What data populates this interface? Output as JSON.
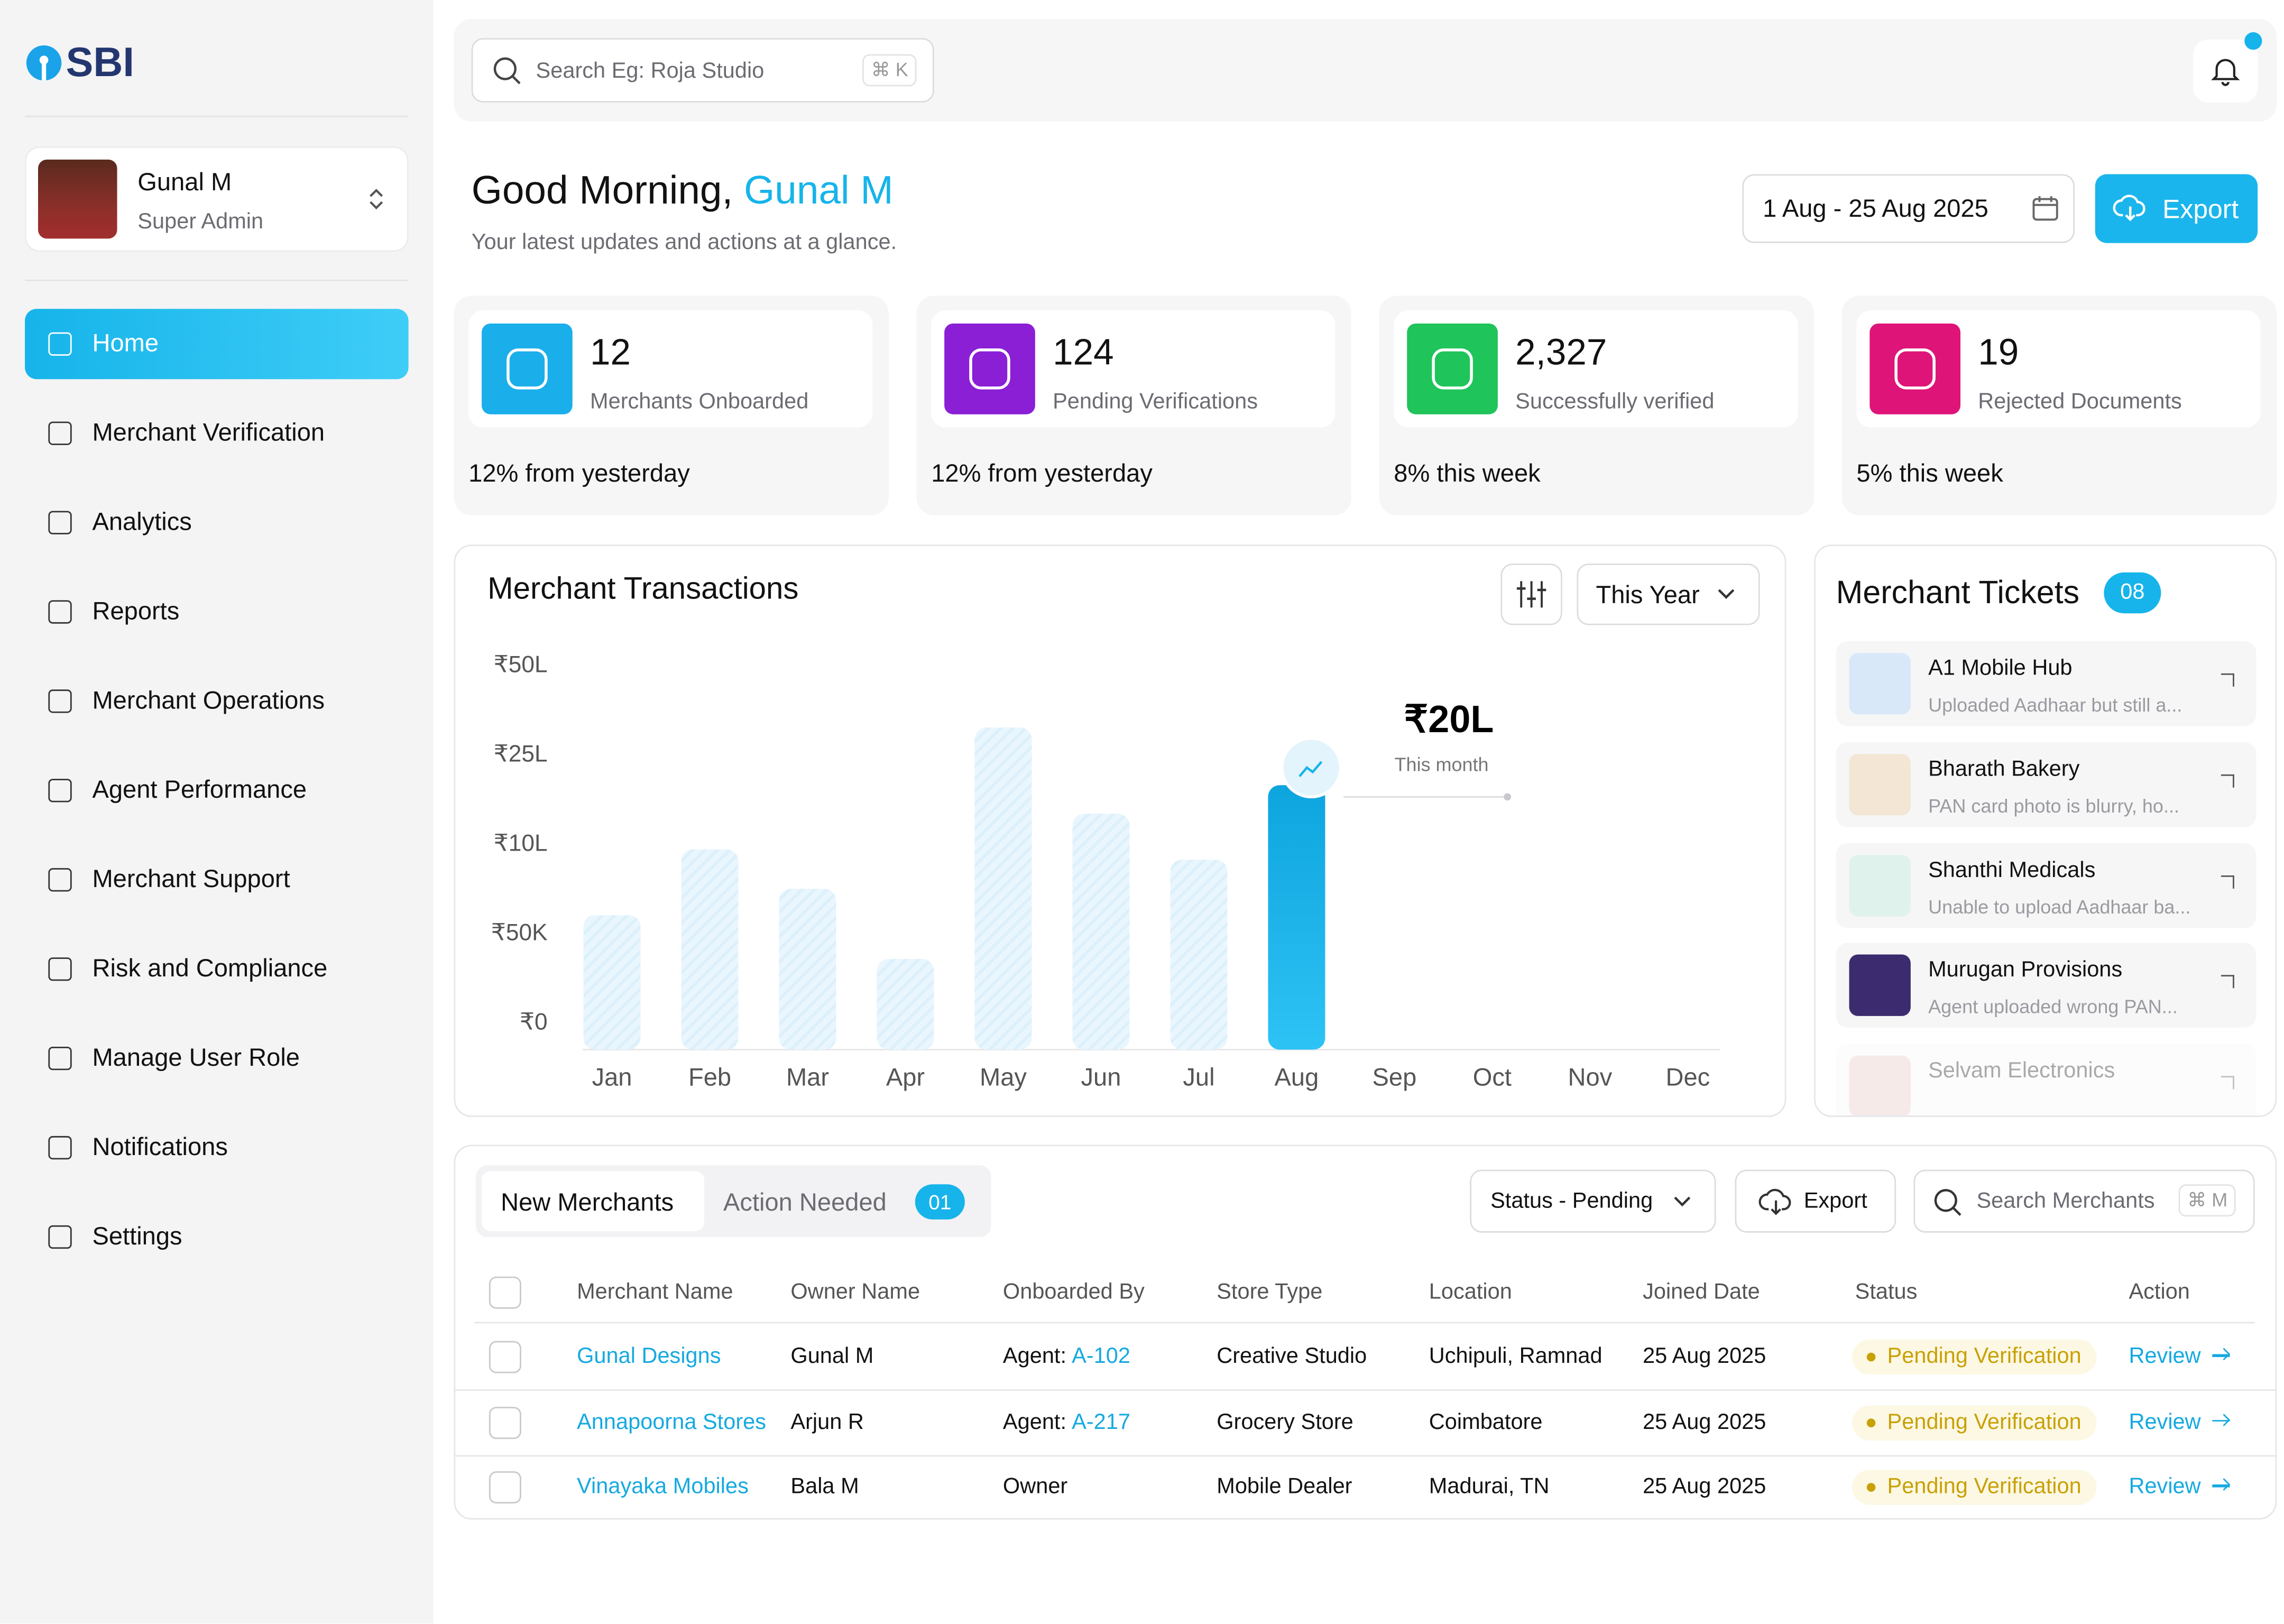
{
  "brand": "SBI",
  "user": {
    "name": "Gunal M",
    "role": "Super Admin"
  },
  "nav": {
    "items": [
      "Home",
      "Merchant Verification",
      "Analytics",
      "Reports",
      "Merchant Operations",
      "Agent Performance",
      "Merchant Support",
      "Risk and Compliance",
      "Manage User Role",
      "Notifications",
      "Settings"
    ],
    "active": 0
  },
  "search": {
    "placeholder": "Search Eg: Roja Studio",
    "shortcut": "⌘ K"
  },
  "greeting": {
    "text": "Good Morning,",
    "name": "Gunal M",
    "subtitle": "Your latest updates and actions at a glance."
  },
  "date_range": "1 Aug - 25 Aug 2025",
  "export": "Export",
  "stats": [
    {
      "value": "12",
      "label": "Merchants Onboarded",
      "change": "12% from yesterday",
      "color": "#1aaeea"
    },
    {
      "value": "124",
      "label": "Pending Verifications",
      "change": "12% from yesterday",
      "color": "#8a1fd6"
    },
    {
      "value": "2,327",
      "label": "Successfully verified",
      "change": "8% this week",
      "color": "#1fc45a"
    },
    {
      "value": "19",
      "label": "Rejected Documents",
      "change": "5% this week",
      "color": "#de1479"
    }
  ],
  "chart_data": {
    "type": "bar",
    "title": "Merchant Transactions",
    "filter": "This Year",
    "categories": [
      "Jan",
      "Feb",
      "Mar",
      "Apr",
      "May",
      "Jun",
      "Jul",
      "Aug",
      "Sep",
      "Oct",
      "Nov",
      "Dec"
    ],
    "values": [
      250000,
      950000,
      530000,
      36000,
      3280000,
      1520000,
      840000,
      2000000,
      null,
      null,
      null,
      null
    ],
    "value_labels": [
      null,
      null,
      null,
      null,
      null,
      null,
      null,
      "₹20L",
      null,
      null,
      null,
      null
    ],
    "annotation": "This month",
    "color": "#16b4ea",
    "ylim": [
      0,
      5000000
    ],
    "yticks": [
      {
        "value": 0,
        "label": "₹0"
      },
      {
        "value": 50000,
        "label": "₹50K"
      },
      {
        "value": 1000000,
        "label": "₹10L"
      },
      {
        "value": 2500000,
        "label": "₹25L"
      },
      {
        "value": 5000000,
        "label": "₹50L"
      }
    ],
    "grid": false
  },
  "tickets": {
    "title": "Merchant Tickets",
    "count": "08",
    "items": [
      {
        "name": "A1 Mobile Hub",
        "message": "Uploaded Aadhaar but still a...",
        "logo": "#d8e8f8"
      },
      {
        "name": "Bharath Bakery",
        "message": "PAN card photo is blurry, ho...",
        "logo": "#f3e6d4"
      },
      {
        "name": "Shanthi Medicals",
        "message": "Unable to upload Aadhaar ba...",
        "logo": "#dff3ec"
      },
      {
        "name": "Murugan Provisions",
        "message": "Agent uploaded wrong PAN...",
        "logo": "#3c2b6e"
      },
      {
        "name": "Selvam Electronics",
        "logo": "#e9c9c2"
      }
    ]
  },
  "merchants": {
    "tabs": [
      "New Merchants",
      "Action Needed"
    ],
    "tab_badge": "01",
    "status_filter": "Status - Pending",
    "export": "Export",
    "search": "Search Merchants",
    "shortcut": "⌘ M",
    "columns": [
      "Merchant Name",
      "Owner Name",
      "Onboarded By",
      "Store Type",
      "Location",
      "Joined Date",
      "Status",
      "Action"
    ],
    "rows": [
      {
        "merchant": "Gunal Designs",
        "owner": "Gunal M",
        "onboarded_by": "Agent:",
        "agent_id": "A-102",
        "store": "Creative Studio",
        "location": "Uchipuli, Ramnad",
        "date": "25 Aug 2025",
        "status": "Pending Verification",
        "action": "Review"
      },
      {
        "merchant": "Annapoorna Stores",
        "owner": "Arjun R",
        "onboarded_by": "Agent:",
        "agent_id": "A-217",
        "store": "Grocery Store",
        "location": "Coimbatore",
        "date": "25 Aug 2025",
        "status": "Pending Verification",
        "action": "Review"
      },
      {
        "merchant": "Vinayaka Mobiles",
        "owner": "Bala M",
        "onboarded_by": "Owner",
        "store": "Mobile Dealer",
        "location": "Madurai, TN",
        "date": "25 Aug 2025",
        "status": "Pending Verification",
        "action": "Review"
      }
    ]
  }
}
